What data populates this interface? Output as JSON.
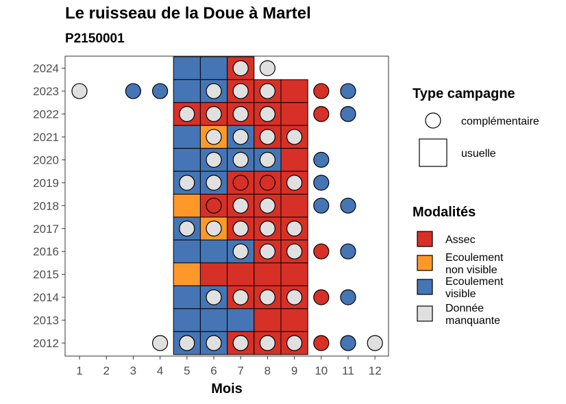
{
  "header": {
    "title": "Le ruisseau de la Doue à Martel",
    "subtitle": "P2150001"
  },
  "legend": {
    "type_title": "Type campagne",
    "type_items": [
      {
        "shape": "circle",
        "label": "complémentaire"
      },
      {
        "shape": "square",
        "label": "usuelle"
      }
    ],
    "mod_title": "Modalités",
    "mod_items": [
      {
        "key": "A",
        "label_lines": [
          "Assec"
        ],
        "color": "#d73027"
      },
      {
        "key": "N",
        "label_lines": [
          "Ecoulement",
          "non visible"
        ],
        "color": "#fe9929"
      },
      {
        "key": "V",
        "label_lines": [
          "Ecoulement",
          "visible"
        ],
        "color": "#4575b4"
      },
      {
        "key": "M",
        "label_lines": [
          "Donnée",
          "manquante"
        ],
        "color": "#e0e0e0"
      }
    ]
  },
  "chart_data": {
    "type": "heatmap",
    "title": "Le ruisseau de la Doue à Martel",
    "subtitle": "P2150001",
    "xlabel": "Mois",
    "ylabel": "",
    "x_ticks": [
      1,
      2,
      3,
      4,
      5,
      6,
      7,
      8,
      9,
      10,
      11,
      12
    ],
    "y_ticks": [
      2012,
      2013,
      2014,
      2015,
      2016,
      2017,
      2018,
      2019,
      2020,
      2021,
      2022,
      2023,
      2024
    ],
    "colors": {
      "A": "#d73027",
      "N": "#fe9929",
      "V": "#4575b4",
      "M": "#e0e0e0"
    },
    "usuelle": [
      {
        "year": 2024,
        "cells": [
          [
            5,
            "V"
          ],
          [
            6,
            "V"
          ],
          [
            7,
            "A"
          ]
        ]
      },
      {
        "year": 2023,
        "cells": [
          [
            5,
            "V"
          ],
          [
            6,
            "V"
          ],
          [
            7,
            "A"
          ],
          [
            8,
            "A"
          ],
          [
            9,
            "A"
          ]
        ]
      },
      {
        "year": 2022,
        "cells": [
          [
            5,
            "A"
          ],
          [
            6,
            "A"
          ],
          [
            7,
            "A"
          ],
          [
            8,
            "A"
          ],
          [
            9,
            "A"
          ]
        ]
      },
      {
        "year": 2021,
        "cells": [
          [
            5,
            "V"
          ],
          [
            6,
            "N"
          ],
          [
            7,
            "V"
          ],
          [
            8,
            "A"
          ],
          [
            9,
            "A"
          ]
        ]
      },
      {
        "year": 2020,
        "cells": [
          [
            5,
            "V"
          ],
          [
            6,
            "V"
          ],
          [
            7,
            "V"
          ],
          [
            8,
            "V"
          ],
          [
            9,
            "A"
          ]
        ]
      },
      {
        "year": 2019,
        "cells": [
          [
            5,
            "V"
          ],
          [
            6,
            "V"
          ],
          [
            7,
            "A"
          ],
          [
            8,
            "A"
          ],
          [
            9,
            "A"
          ]
        ]
      },
      {
        "year": 2018,
        "cells": [
          [
            5,
            "N"
          ],
          [
            6,
            "A"
          ],
          [
            7,
            "A"
          ],
          [
            8,
            "A"
          ],
          [
            9,
            "A"
          ]
        ]
      },
      {
        "year": 2017,
        "cells": [
          [
            5,
            "V"
          ],
          [
            6,
            "N"
          ],
          [
            7,
            "A"
          ],
          [
            8,
            "A"
          ],
          [
            9,
            "A"
          ]
        ]
      },
      {
        "year": 2016,
        "cells": [
          [
            5,
            "V"
          ],
          [
            6,
            "V"
          ],
          [
            7,
            "V"
          ],
          [
            8,
            "A"
          ],
          [
            9,
            "A"
          ]
        ]
      },
      {
        "year": 2015,
        "cells": [
          [
            5,
            "N"
          ],
          [
            6,
            "A"
          ],
          [
            7,
            "A"
          ],
          [
            8,
            "A"
          ],
          [
            9,
            "A"
          ]
        ]
      },
      {
        "year": 2014,
        "cells": [
          [
            5,
            "V"
          ],
          [
            6,
            "V"
          ],
          [
            7,
            "A"
          ],
          [
            8,
            "A"
          ],
          [
            9,
            "A"
          ]
        ]
      },
      {
        "year": 2013,
        "cells": [
          [
            5,
            "V"
          ],
          [
            6,
            "V"
          ],
          [
            7,
            "V"
          ],
          [
            8,
            "A"
          ],
          [
            9,
            "A"
          ]
        ]
      },
      {
        "year": 2012,
        "cells": [
          [
            5,
            "V"
          ],
          [
            6,
            "V"
          ],
          [
            7,
            "A"
          ],
          [
            8,
            "A"
          ],
          [
            9,
            "A"
          ]
        ]
      }
    ],
    "complementaire": [
      {
        "year": 2024,
        "points": [
          [
            7,
            "M"
          ],
          [
            8,
            "M"
          ]
        ]
      },
      {
        "year": 2023,
        "points": [
          [
            1,
            "M"
          ],
          [
            3,
            "V"
          ],
          [
            4,
            "V"
          ],
          [
            6,
            "M"
          ],
          [
            7,
            "M"
          ],
          [
            8,
            "M"
          ],
          [
            10,
            "A"
          ],
          [
            11,
            "V"
          ]
        ]
      },
      {
        "year": 2022,
        "points": [
          [
            5,
            "M"
          ],
          [
            6,
            "M"
          ],
          [
            7,
            "M"
          ],
          [
            8,
            "M"
          ],
          [
            10,
            "A"
          ],
          [
            11,
            "V"
          ]
        ]
      },
      {
        "year": 2021,
        "points": [
          [
            6,
            "M"
          ],
          [
            7,
            "M"
          ],
          [
            8,
            "M"
          ],
          [
            9,
            "M"
          ]
        ]
      },
      {
        "year": 2020,
        "points": [
          [
            6,
            "M"
          ],
          [
            7,
            "M"
          ],
          [
            8,
            "M"
          ],
          [
            10,
            "V"
          ]
        ]
      },
      {
        "year": 2019,
        "points": [
          [
            5,
            "M"
          ],
          [
            6,
            "M"
          ],
          [
            7,
            "A"
          ],
          [
            8,
            "A"
          ],
          [
            9,
            "M"
          ],
          [
            10,
            "V"
          ]
        ]
      },
      {
        "year": 2018,
        "points": [
          [
            6,
            "A"
          ],
          [
            7,
            "M"
          ],
          [
            8,
            "M"
          ],
          [
            10,
            "V"
          ],
          [
            11,
            "V"
          ]
        ]
      },
      {
        "year": 2017,
        "points": [
          [
            5,
            "M"
          ],
          [
            6,
            "M"
          ],
          [
            7,
            "M"
          ],
          [
            8,
            "M"
          ],
          [
            9,
            "M"
          ]
        ]
      },
      {
        "year": 2016,
        "points": [
          [
            7,
            "M"
          ],
          [
            8,
            "M"
          ],
          [
            9,
            "M"
          ],
          [
            10,
            "A"
          ],
          [
            11,
            "V"
          ]
        ]
      },
      {
        "year": 2015,
        "points": []
      },
      {
        "year": 2014,
        "points": [
          [
            6,
            "M"
          ],
          [
            7,
            "M"
          ],
          [
            8,
            "M"
          ],
          [
            9,
            "M"
          ],
          [
            10,
            "A"
          ],
          [
            11,
            "V"
          ]
        ]
      },
      {
        "year": 2013,
        "points": []
      },
      {
        "year": 2012,
        "points": [
          [
            4,
            "M"
          ],
          [
            5,
            "M"
          ],
          [
            6,
            "M"
          ],
          [
            7,
            "M"
          ],
          [
            8,
            "M"
          ],
          [
            9,
            "M"
          ],
          [
            10,
            "A"
          ],
          [
            11,
            "V"
          ],
          [
            12,
            "M"
          ]
        ]
      }
    ]
  }
}
